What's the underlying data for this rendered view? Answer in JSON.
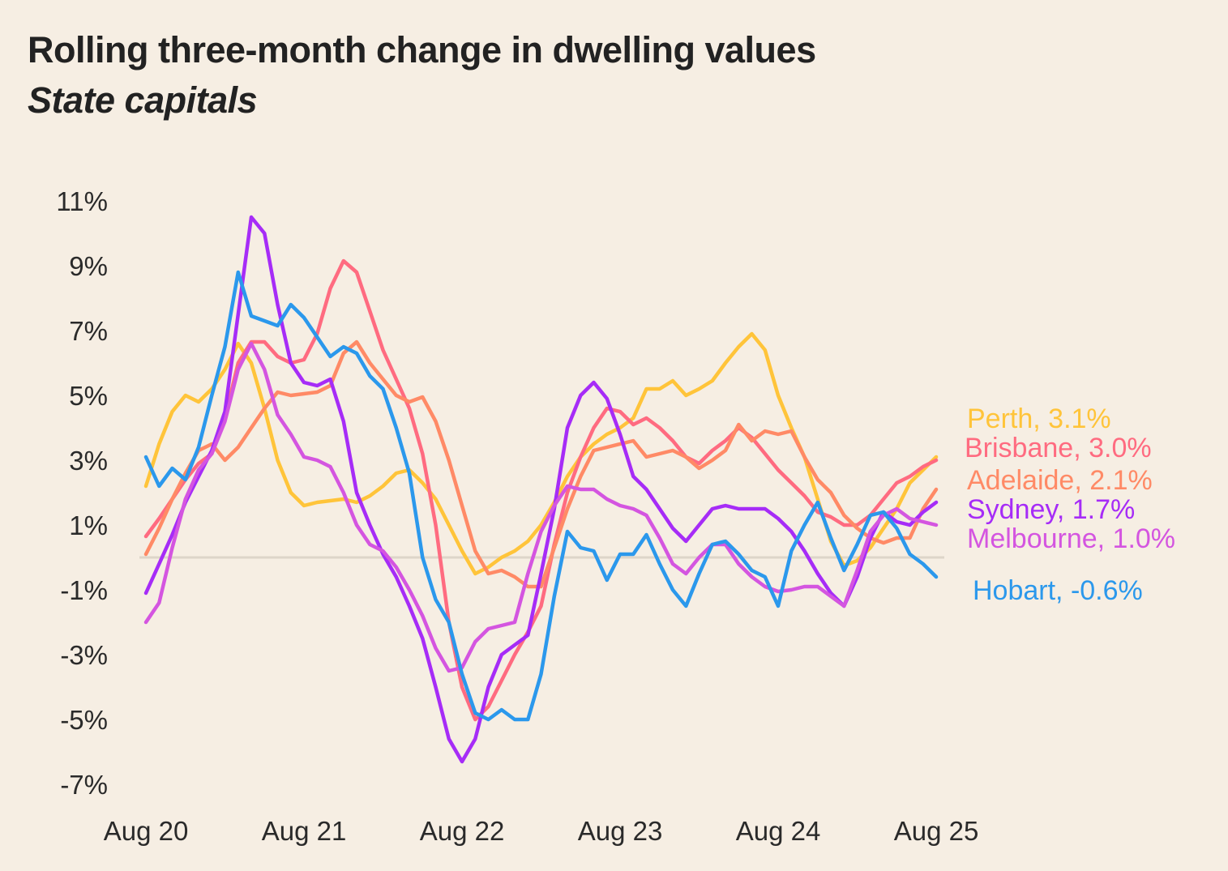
{
  "chart_data": {
    "type": "line",
    "title": "Rolling three-month change in dwelling values",
    "subtitle": "State capitals",
    "xlabel": "",
    "ylabel": "",
    "x_start": "Aug 2020",
    "x_end": "Aug 2025",
    "x_frequency": "monthly",
    "x_ticks": [
      "Aug 20",
      "Aug 21",
      "Aug 22",
      "Aug 23",
      "Aug 24",
      "Aug 25"
    ],
    "y_ticks": [
      "11%",
      "9%",
      "7%",
      "5%",
      "3%",
      "1%",
      "-1%",
      "-3%",
      "-5%",
      "-7%"
    ],
    "ylim": [
      -7,
      11
    ],
    "grid": false,
    "zero_line": true,
    "legend": "end-of-line labels",
    "background": "#f6eee3",
    "series": [
      {
        "name": "Perth",
        "label": "Perth, 3.1%",
        "color": "#ffc43a",
        "values": [
          2.2,
          3.5,
          4.5,
          5.0,
          4.8,
          5.2,
          5.8,
          6.6,
          6.0,
          4.6,
          3.0,
          2.0,
          1.6,
          1.7,
          1.75,
          1.8,
          1.7,
          1.9,
          2.2,
          2.6,
          2.7,
          2.3,
          1.8,
          1.0,
          0.2,
          -0.5,
          -0.3,
          0.0,
          0.2,
          0.5,
          1.0,
          1.7,
          2.5,
          3.1,
          3.5,
          3.8,
          4.0,
          4.3,
          5.2,
          5.2,
          5.45,
          5.0,
          5.2,
          5.45,
          6.0,
          6.5,
          6.9,
          6.4,
          5.0,
          4.0,
          3.1,
          1.8,
          0.5,
          -0.25,
          -0.1,
          0.3,
          0.9,
          1.5,
          2.3,
          2.7,
          3.1
        ]
      },
      {
        "name": "Brisbane",
        "label": "Brisbane, 3.0%",
        "color": "#ff6b80",
        "values": [
          0.65,
          1.2,
          1.8,
          2.4,
          2.9,
          3.2,
          4.3,
          6.0,
          6.65,
          6.65,
          6.2,
          6.0,
          6.1,
          6.9,
          8.3,
          9.15,
          8.8,
          7.6,
          6.4,
          5.5,
          4.6,
          3.2,
          1.0,
          -2.0,
          -4.0,
          -5.0,
          -4.6,
          -3.8,
          -3.0,
          -2.3,
          -1.5,
          0.4,
          2.0,
          3.1,
          4.0,
          4.6,
          4.5,
          4.1,
          4.3,
          4.0,
          3.6,
          3.1,
          2.9,
          3.3,
          3.6,
          4.0,
          3.7,
          3.2,
          2.7,
          2.3,
          1.9,
          1.4,
          1.25,
          1.0,
          1.0,
          1.3,
          1.8,
          2.3,
          2.5,
          2.8,
          3.0
        ]
      },
      {
        "name": "Adelaide",
        "label": "Adelaide, 2.1%",
        "color": "#ff8a66",
        "values": [
          0.1,
          0.9,
          1.8,
          2.6,
          3.3,
          3.5,
          3.0,
          3.4,
          4.0,
          4.6,
          5.1,
          5.0,
          5.05,
          5.1,
          5.3,
          6.3,
          6.65,
          6.0,
          5.5,
          5.0,
          4.8,
          4.95,
          4.2,
          3.0,
          1.6,
          0.2,
          -0.5,
          -0.4,
          -0.6,
          -0.9,
          -0.9,
          0.3,
          1.5,
          2.5,
          3.3,
          3.4,
          3.5,
          3.6,
          3.1,
          3.2,
          3.3,
          3.1,
          2.75,
          3.0,
          3.3,
          4.1,
          3.6,
          3.9,
          3.8,
          3.9,
          3.1,
          2.4,
          2.0,
          1.3,
          0.9,
          0.6,
          0.45,
          0.6,
          0.6,
          1.5,
          2.1
        ]
      },
      {
        "name": "Sydney",
        "label": "Sydney, 1.7%",
        "color": "#a62cf7",
        "values": [
          -1.1,
          -0.2,
          0.7,
          1.7,
          2.5,
          3.3,
          4.5,
          7.5,
          10.5,
          10.0,
          7.8,
          6.0,
          5.4,
          5.3,
          5.5,
          4.2,
          2.0,
          1.0,
          0.1,
          -0.6,
          -1.5,
          -2.5,
          -4.0,
          -5.6,
          -6.3,
          -5.6,
          -4.0,
          -3.0,
          -2.7,
          -2.4,
          -0.5,
          1.5,
          4.0,
          5.0,
          5.4,
          4.9,
          3.8,
          2.5,
          2.1,
          1.5,
          0.9,
          0.5,
          1.0,
          1.5,
          1.6,
          1.5,
          1.5,
          1.5,
          1.2,
          0.8,
          0.2,
          -0.5,
          -1.1,
          -1.5,
          -0.6,
          0.6,
          1.4,
          1.1,
          1.0,
          1.4,
          1.7
        ]
      },
      {
        "name": "Melbourne",
        "label": "Melbourne, 1.0%",
        "color": "#d455e0",
        "values": [
          -2.0,
          -1.4,
          0.3,
          1.8,
          2.7,
          3.2,
          4.2,
          5.8,
          6.6,
          5.8,
          4.4,
          3.8,
          3.1,
          3.0,
          2.8,
          2.0,
          1.0,
          0.4,
          0.2,
          -0.3,
          -1.0,
          -1.8,
          -2.8,
          -3.5,
          -3.4,
          -2.6,
          -2.2,
          -2.1,
          -2.0,
          -0.5,
          0.8,
          1.6,
          2.2,
          2.1,
          2.1,
          1.8,
          1.6,
          1.5,
          1.3,
          0.6,
          -0.2,
          -0.5,
          0.0,
          0.4,
          0.4,
          -0.2,
          -0.6,
          -0.9,
          -1.05,
          -1.0,
          -0.9,
          -0.9,
          -1.2,
          -1.5,
          -0.4,
          0.8,
          1.3,
          1.5,
          1.2,
          1.1,
          1.0
        ]
      },
      {
        "name": "Hobart",
        "label": "Hobart, -0.6%",
        "color": "#2b98ec",
        "values": [
          3.1,
          2.2,
          2.75,
          2.4,
          3.4,
          5.0,
          6.5,
          8.8,
          7.45,
          7.3,
          7.15,
          7.8,
          7.4,
          6.8,
          6.2,
          6.5,
          6.3,
          5.6,
          5.2,
          4.0,
          2.6,
          0.0,
          -1.3,
          -2.0,
          -3.6,
          -4.8,
          -5.0,
          -4.7,
          -5.0,
          -5.0,
          -3.6,
          -1.2,
          0.8,
          0.3,
          0.2,
          -0.7,
          0.1,
          0.1,
          0.7,
          -0.2,
          -1.0,
          -1.5,
          -0.5,
          0.4,
          0.5,
          0.1,
          -0.4,
          -0.6,
          -1.5,
          0.2,
          1.0,
          1.7,
          0.6,
          -0.4,
          0.4,
          1.3,
          1.4,
          0.9,
          0.1,
          -0.2,
          -0.6
        ]
      }
    ]
  }
}
